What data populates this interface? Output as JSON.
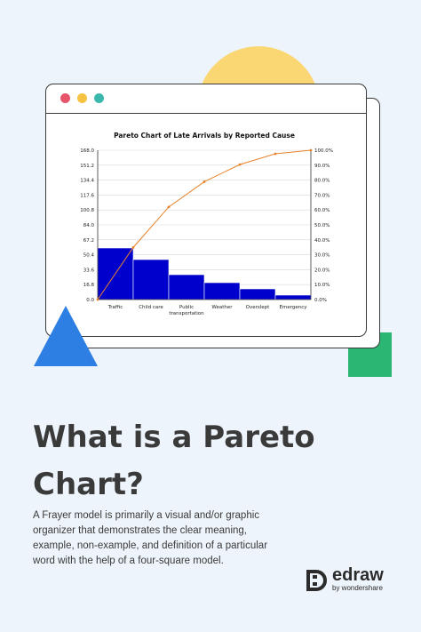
{
  "page": {
    "headline": "What is a Pareto Chart?",
    "description": "A Frayer model is primarily a visual and/or graphic organizer that demonstrates the clear meaning, example, non-example, and definition of a particular word with the help of a four-square model."
  },
  "logo": {
    "name": "edraw",
    "sub": "by wondershare"
  },
  "colors": {
    "bar": "#0000cc",
    "line": "#e8822a",
    "sun": "#fbd774",
    "triangle": "#2d7fe3",
    "square": "#2bb673",
    "text": "#3a3a3a"
  },
  "chart_data": {
    "type": "bar",
    "title": "Pareto Chart of Late Arrivals by Reported Cause",
    "categories": [
      "Traffic",
      "Child care",
      "Public transportation",
      "Weather",
      "Overslept",
      "Emergency"
    ],
    "values": [
      58,
      45,
      28,
      19,
      12,
      5
    ],
    "cumulative_percent": [
      34.9,
      62.0,
      78.9,
      90.4,
      97.6,
      100.0
    ],
    "ylim": [
      0,
      168
    ],
    "y2lim": [
      0,
      100
    ],
    "yticks": [
      "0.0",
      "16.8",
      "33.6",
      "50.4",
      "67.2",
      "84.0",
      "100.8",
      "117.6",
      "134.4",
      "151.2",
      "168.0"
    ],
    "y2ticks": [
      "0.0%",
      "10.0%",
      "20.0%",
      "30.0%",
      "40.0%",
      "50.0%",
      "60.0%",
      "70.0%",
      "80.0%",
      "90.0%",
      "100.0%"
    ],
    "grid": true
  }
}
